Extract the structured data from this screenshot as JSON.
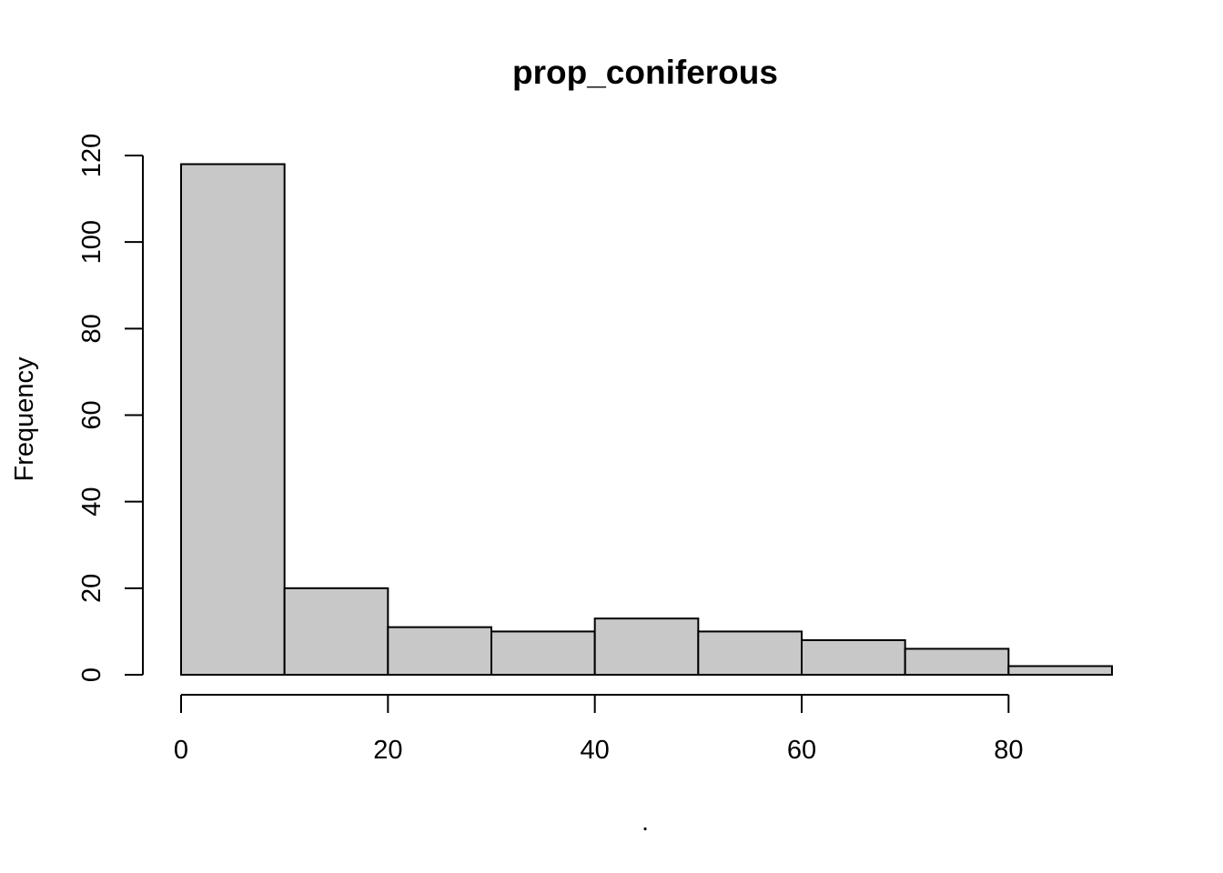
{
  "chart_data": {
    "type": "bar",
    "subtype": "histogram",
    "title": "prop_coniferous",
    "xlabel": ".",
    "ylabel": "Frequency",
    "bins": [
      {
        "start": 0,
        "end": 10,
        "count": 118
      },
      {
        "start": 10,
        "end": 20,
        "count": 20
      },
      {
        "start": 20,
        "end": 30,
        "count": 11
      },
      {
        "start": 30,
        "end": 40,
        "count": 10
      },
      {
        "start": 40,
        "end": 50,
        "count": 13
      },
      {
        "start": 50,
        "end": 60,
        "count": 10
      },
      {
        "start": 60,
        "end": 70,
        "count": 8
      },
      {
        "start": 70,
        "end": 80,
        "count": 6
      },
      {
        "start": 80,
        "end": 90,
        "count": 2
      }
    ],
    "x_ticks": [
      0,
      20,
      40,
      60,
      80
    ],
    "y_ticks": [
      0,
      20,
      40,
      60,
      80,
      100,
      120
    ],
    "xlim": [
      0,
      90
    ],
    "ylim": [
      0,
      120
    ],
    "grid": false,
    "legend": "none",
    "colors": {
      "bar_fill": "#c8c8c8",
      "bar_stroke": "#000000",
      "axis": "#000000"
    }
  }
}
